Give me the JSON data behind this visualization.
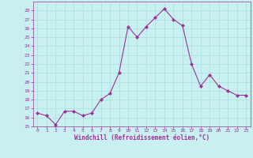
{
  "x": [
    0,
    1,
    2,
    3,
    4,
    5,
    6,
    7,
    8,
    9,
    10,
    11,
    12,
    13,
    14,
    15,
    16,
    17,
    18,
    19,
    20,
    21,
    22,
    23
  ],
  "y": [
    16.5,
    16.2,
    15.2,
    16.7,
    16.7,
    16.2,
    16.5,
    18.0,
    18.7,
    21.0,
    26.2,
    25.0,
    26.2,
    27.2,
    28.2,
    27.0,
    26.3,
    22.0,
    19.5,
    20.8,
    19.5,
    19.0,
    18.5,
    18.5
  ],
  "line_color": "#993399",
  "marker": "D",
  "marker_size": 2,
  "bg_color": "#c8f0f0",
  "grid_color": "#aadddd",
  "xlabel": "Windchill (Refroidissement éolien,°C)",
  "xlabel_color": "#993399",
  "tick_color": "#993399",
  "ylim": [
    15,
    29
  ],
  "xlim": [
    -0.5,
    23.5
  ],
  "yticks": [
    15,
    16,
    17,
    18,
    19,
    20,
    21,
    22,
    23,
    24,
    25,
    26,
    27,
    28
  ],
  "xticks": [
    0,
    1,
    2,
    3,
    4,
    5,
    6,
    7,
    8,
    9,
    10,
    11,
    12,
    13,
    14,
    15,
    16,
    17,
    18,
    19,
    20,
    21,
    22,
    23
  ],
  "spine_color": "#993399"
}
